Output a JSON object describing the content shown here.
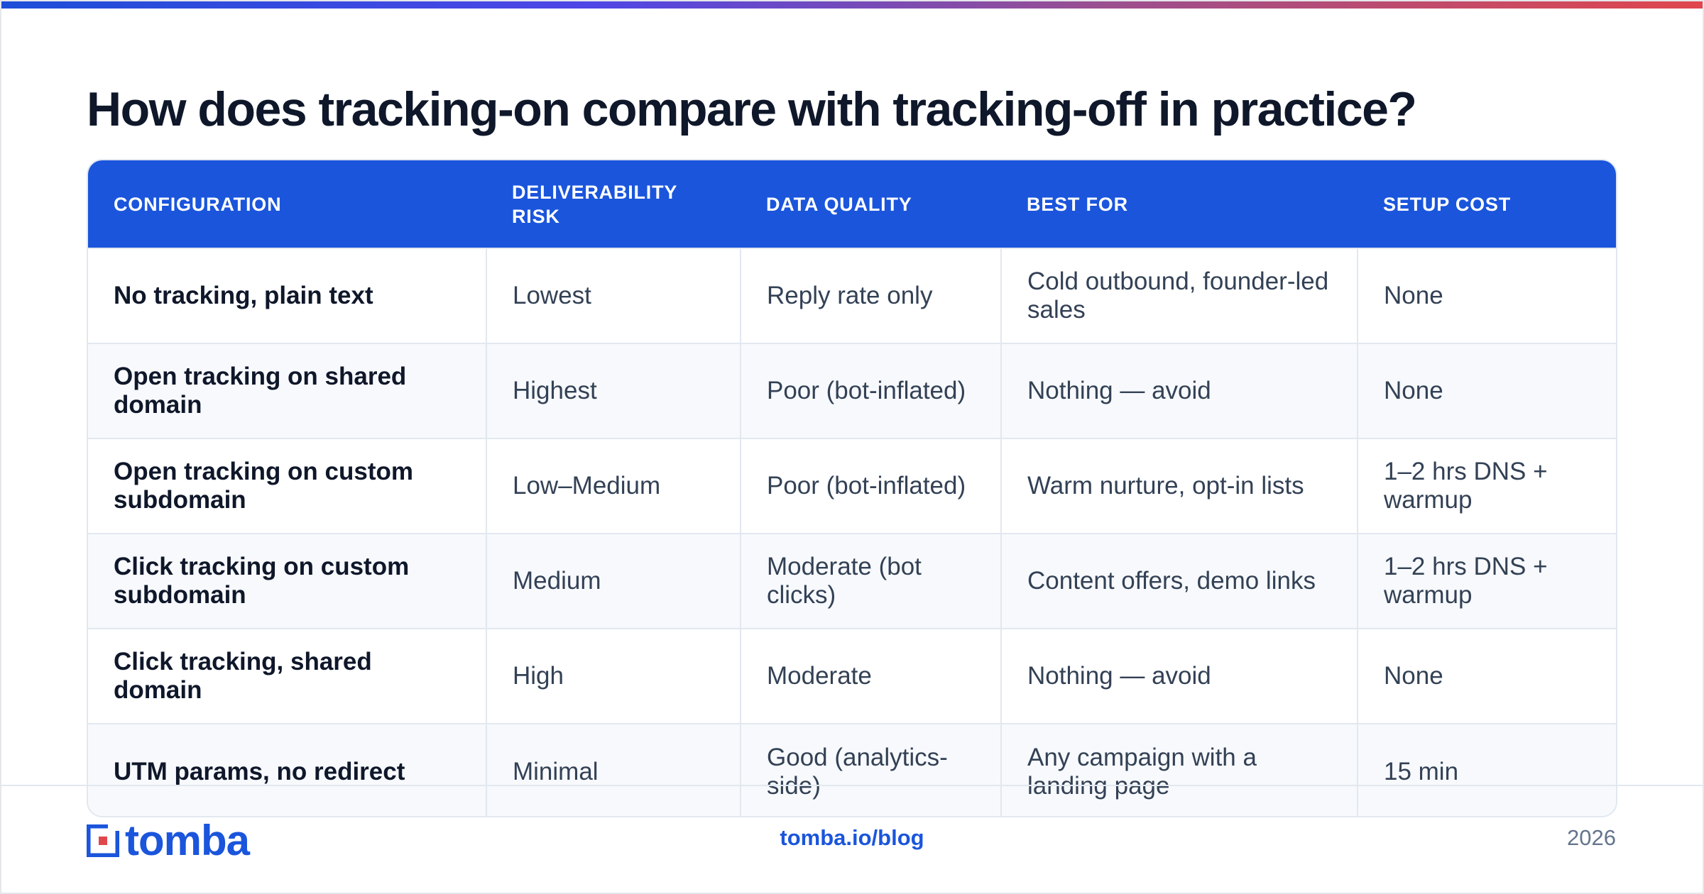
{
  "title": "How does tracking-on compare with tracking-off in practice?",
  "table": {
    "headers": [
      "Configuration",
      "Deliverability risk",
      "Data quality",
      "Best for",
      "Setup cost"
    ],
    "rows": [
      [
        "No tracking, plain text",
        "Lowest",
        "Reply rate only",
        "Cold outbound, founder-led sales",
        "None"
      ],
      [
        "Open tracking on shared domain",
        "Highest",
        "Poor (bot-inflated)",
        "Nothing — avoid",
        "None"
      ],
      [
        "Open tracking on custom subdomain",
        "Low–Medium",
        "Poor (bot-inflated)",
        "Warm nurture, opt-in lists",
        "1–2 hrs DNS + warmup"
      ],
      [
        "Click tracking on custom subdomain",
        "Medium",
        "Moderate (bot clicks)",
        "Content offers, demo links",
        "1–2 hrs DNS + warmup"
      ],
      [
        "Click tracking, shared domain",
        "High",
        "Moderate",
        "Nothing — avoid",
        "None"
      ],
      [
        "UTM params, no redirect",
        "Minimal",
        "Good (analytics-side)",
        "Any campaign with a landing page",
        "15 min"
      ]
    ]
  },
  "footer": {
    "logo_text": "tomba",
    "link": "tomba.io/blog",
    "year": "2026"
  },
  "colors": {
    "accent": "#1a55dc",
    "text": "#0f172a",
    "muted": "#64748b",
    "border": "#e2e8f0"
  },
  "icons": {
    "logo": "tomba-logo-icon"
  }
}
